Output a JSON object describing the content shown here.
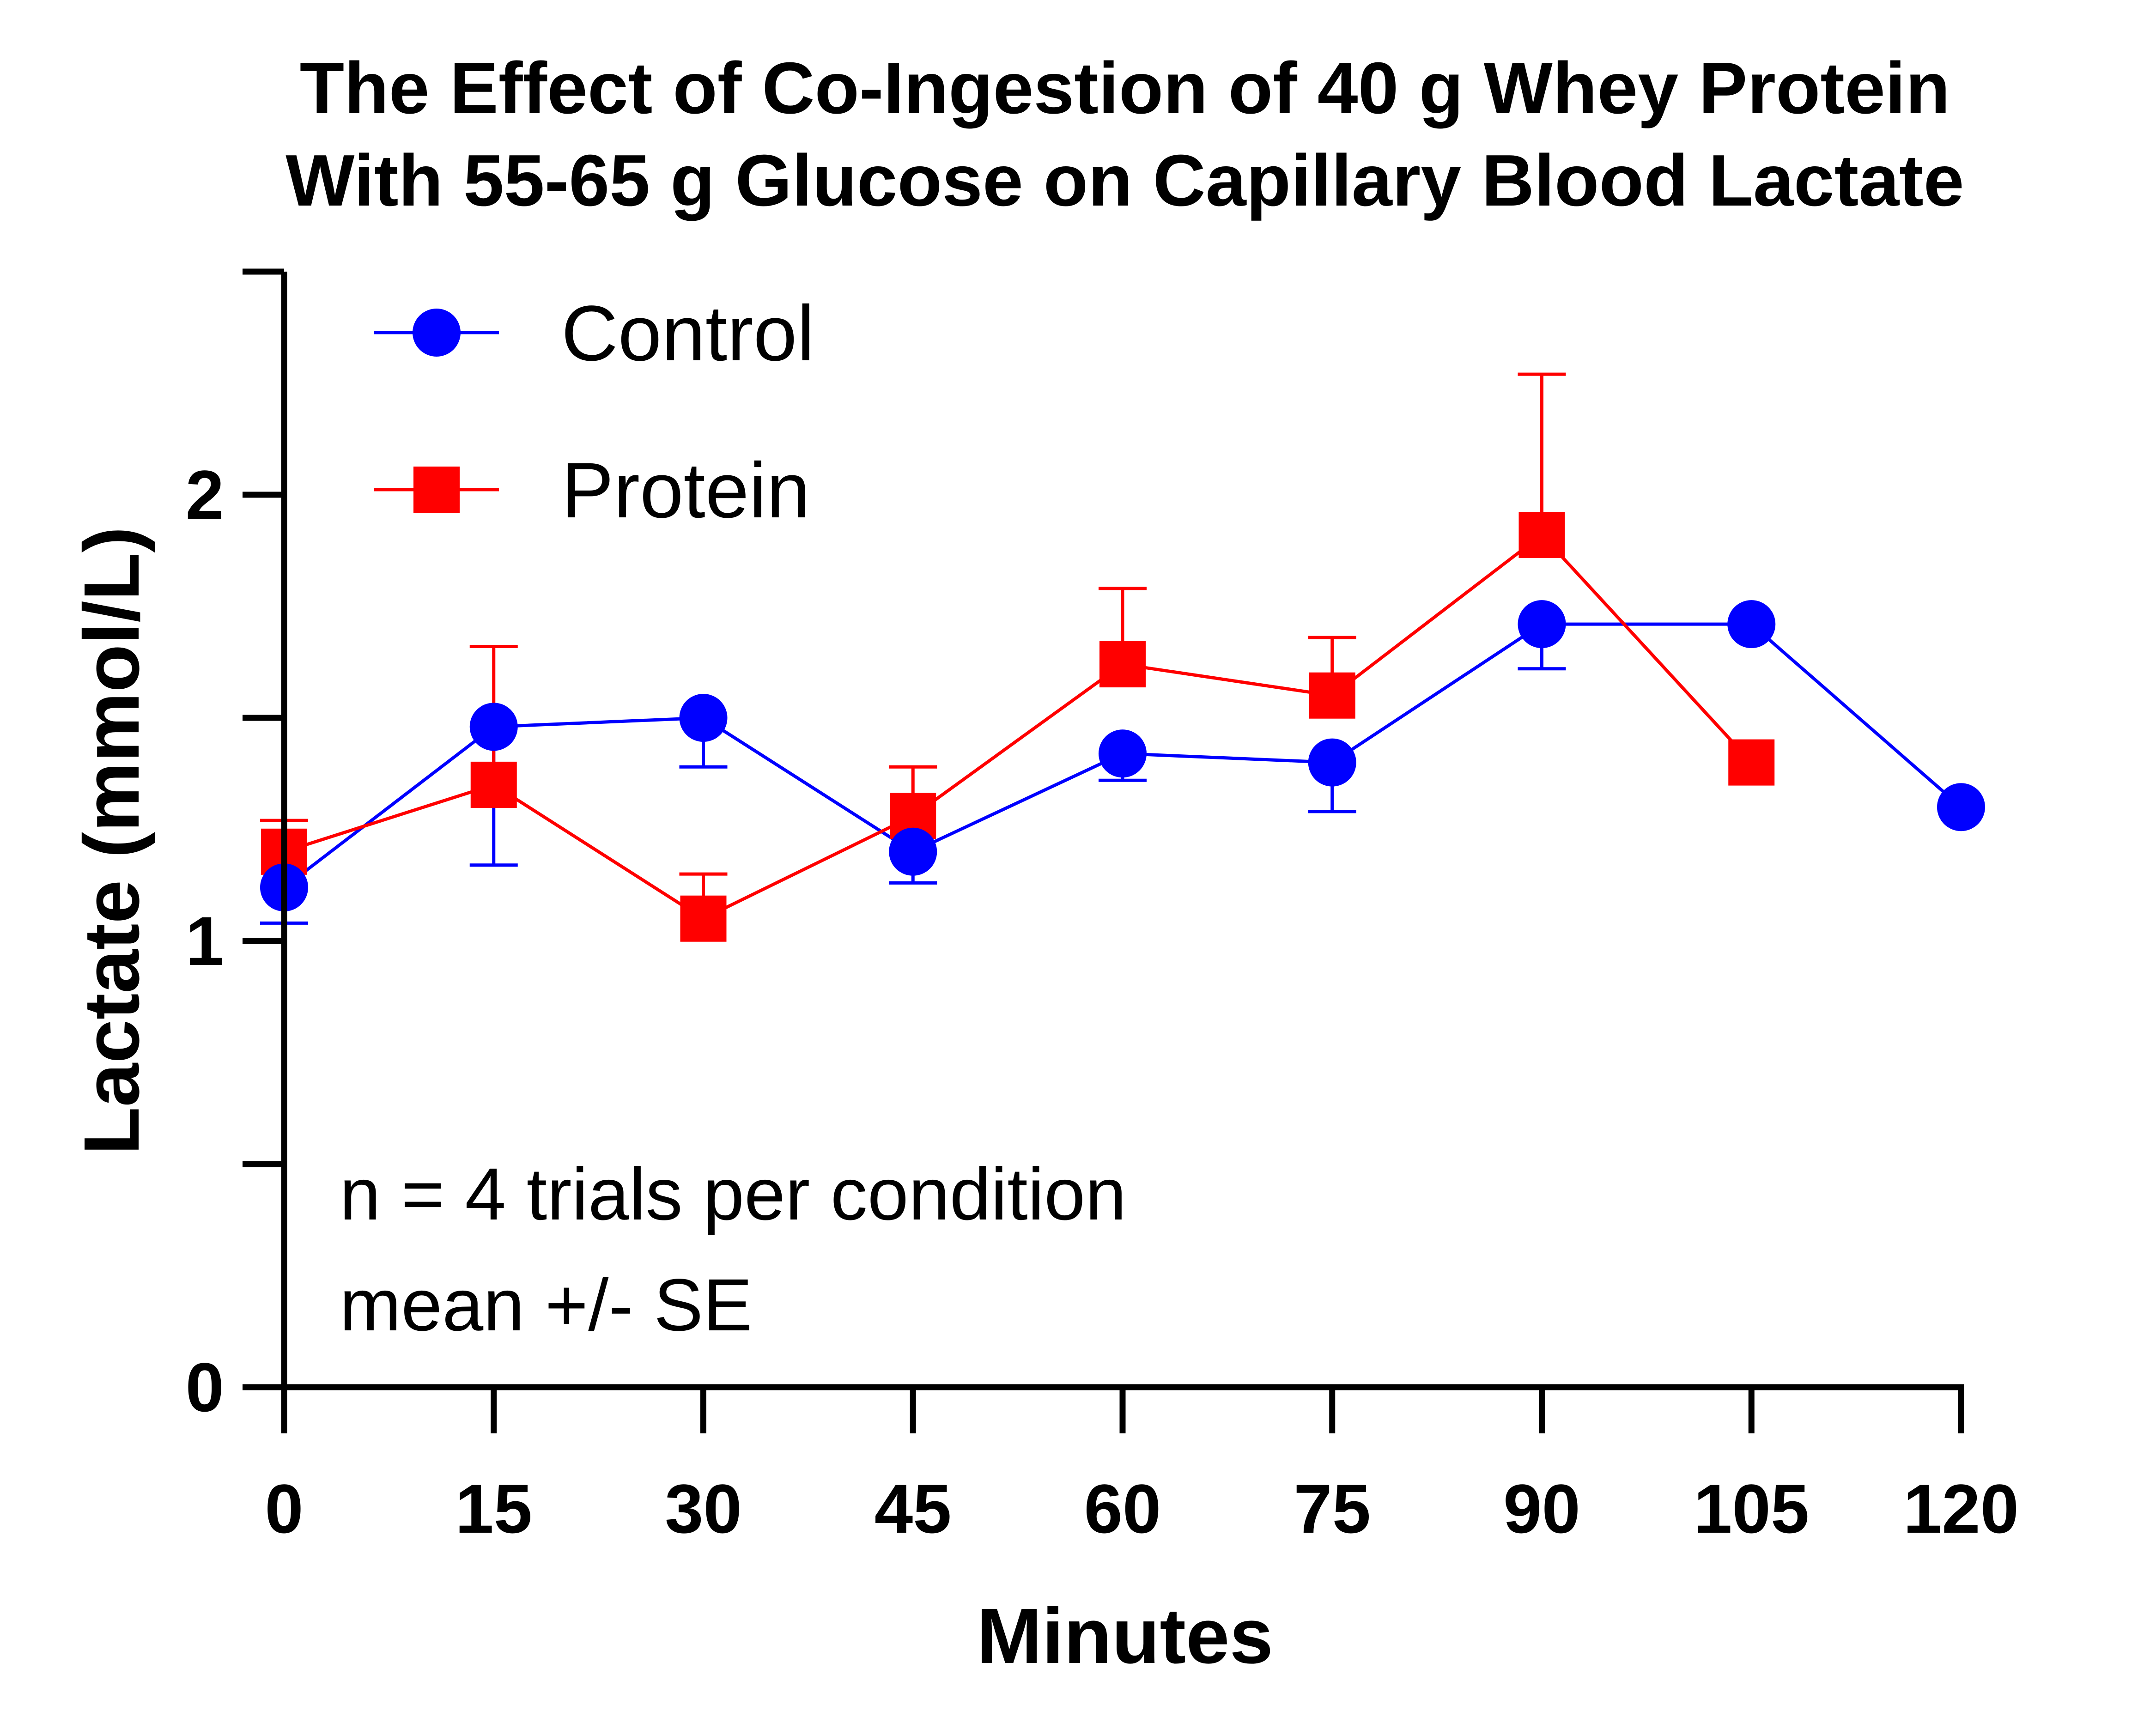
{
  "chart_data": {
    "type": "line",
    "title": [
      "The Effect of Co-Ingestion of 40 g Whey Protein",
      "With 55-65 g Glucose on Capillary Blood Lactate"
    ],
    "xlabel": "Minutes",
    "ylabel": "Lactate (mmol/L)",
    "x": [
      0,
      15,
      30,
      45,
      60,
      75,
      90,
      105,
      120
    ],
    "x_tick_labels": [
      "0",
      "15",
      "30",
      "45",
      "60",
      "75",
      "90",
      "105",
      "120"
    ],
    "xlim": [
      0,
      120
    ],
    "ylim": [
      0,
      2.5
    ],
    "y_ticks": [
      0,
      0.5,
      1,
      1.5,
      2,
      2.5
    ],
    "y_tick_labels": [
      "0",
      "",
      "1",
      "",
      "2",
      ""
    ],
    "grid": false,
    "legend_position": "top-left",
    "series": [
      {
        "name": "Control",
        "color": "#0000ff",
        "marker": "circle",
        "x": [
          0,
          15,
          30,
          45,
          60,
          75,
          90,
          105,
          120
        ],
        "values": [
          1.12,
          1.48,
          1.5,
          1.2,
          1.42,
          1.4,
          1.71,
          1.71,
          1.3
        ],
        "error": [
          0.08,
          0.31,
          0.11,
          0.07,
          0.06,
          0.11,
          0.1,
          0,
          0
        ],
        "error_direction": [
          "down",
          "down",
          "down",
          "down",
          "down",
          "down",
          "down",
          "none",
          "none"
        ]
      },
      {
        "name": "Protein",
        "color": "#ff0000",
        "marker": "square",
        "x": [
          0,
          15,
          30,
          45,
          60,
          75,
          90,
          105
        ],
        "values": [
          1.2,
          1.35,
          1.05,
          1.28,
          1.62,
          1.55,
          1.91,
          1.4
        ],
        "error": [
          0.07,
          0.31,
          0.1,
          0.11,
          0.17,
          0.13,
          0.36,
          0
        ],
        "error_direction": [
          "up",
          "up",
          "up",
          "up",
          "up",
          "up",
          "up",
          "none"
        ]
      }
    ],
    "annotations": [
      "n = 4 trials per condition",
      "mean +/- SE"
    ]
  }
}
